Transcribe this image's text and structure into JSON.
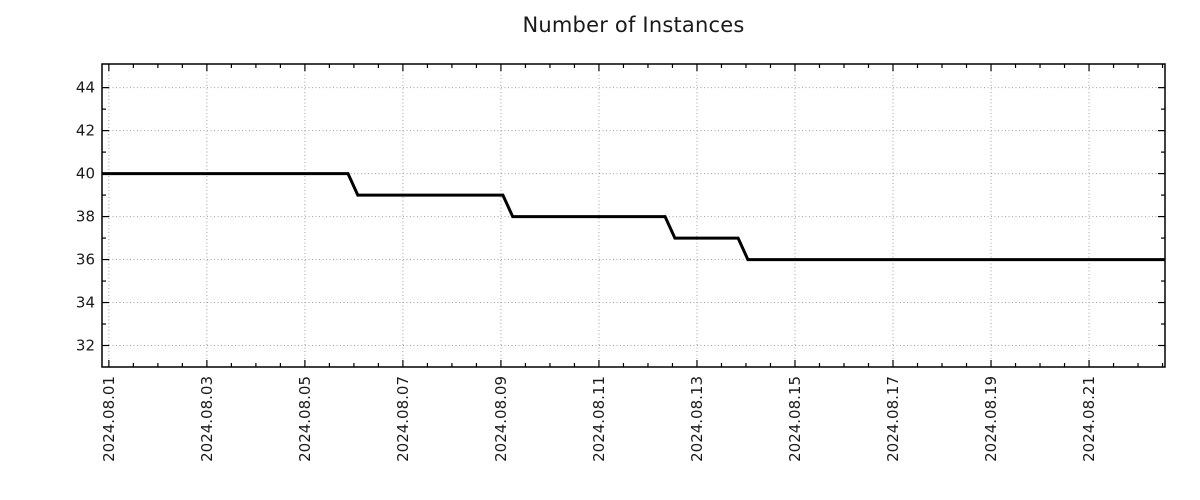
{
  "chart_data": {
    "type": "line",
    "title": "Number of Instances",
    "background": "#ffffff",
    "line_color": "#000000",
    "line_width": 3,
    "text_color": "#1a1a1a",
    "grid": {
      "show": true,
      "color": "#a0a0a0",
      "style": "dotted"
    },
    "legend": {
      "show": false
    },
    "x_axis": {
      "unit": "days since 2024-08-01",
      "min": -0.14,
      "max": 21.55,
      "major_tick_interval_days": 2,
      "minor_tick_interval_days": 0.5,
      "major_ticks": [
        0,
        2,
        4,
        6,
        8,
        10,
        12,
        14,
        16,
        18,
        20
      ],
      "tick_labels": [
        "2024.08.01",
        "2024.08.03",
        "2024.08.05",
        "2024.08.07",
        "2024.08.09",
        "2024.08.11",
        "2024.08.13",
        "2024.08.15",
        "2024.08.17",
        "2024.08.19",
        "2024.08.21"
      ],
      "tick_label_rotation_deg": -90
    },
    "y_axis": {
      "min": 31.0,
      "max": 45.1,
      "major_ticks": [
        32,
        34,
        36,
        38,
        40,
        42,
        44
      ],
      "minor_ticks": [
        33,
        35,
        37,
        39,
        41,
        43
      ],
      "tick_labels": [
        "32",
        "34",
        "36",
        "38",
        "40",
        "42",
        "44"
      ]
    },
    "series": [
      {
        "name": "instances",
        "points": [
          {
            "x": -0.14,
            "y": 40
          },
          {
            "x": 4.88,
            "y": 40
          },
          {
            "x": 5.08,
            "y": 39
          },
          {
            "x": 8.04,
            "y": 39
          },
          {
            "x": 8.24,
            "y": 38
          },
          {
            "x": 11.35,
            "y": 38
          },
          {
            "x": 11.55,
            "y": 37
          },
          {
            "x": 12.84,
            "y": 37
          },
          {
            "x": 13.04,
            "y": 36
          },
          {
            "x": 21.55,
            "y": 36
          }
        ]
      }
    ],
    "steps_summary": [
      {
        "from": "2024.08.01",
        "to": "2024.08.06",
        "value": 40
      },
      {
        "from": "2024.08.06",
        "to": "2024.08.09",
        "value": 39
      },
      {
        "from": "2024.08.09",
        "to": "2024.08.12 midday",
        "value": 38
      },
      {
        "from": "2024.08.12 midday",
        "to": "2024.08.14",
        "value": 37
      },
      {
        "from": "2024.08.14",
        "to": "2024.08.22 (chart end)",
        "value": 36
      }
    ]
  }
}
